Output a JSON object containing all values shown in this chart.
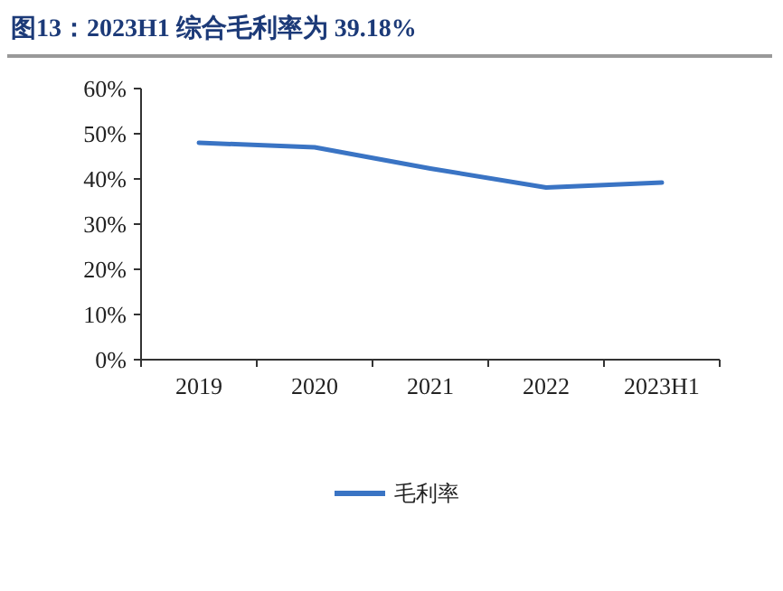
{
  "chart_data": {
    "type": "line",
    "title": "图13：2023H1 综合毛利率为 39.18%",
    "categories": [
      "2019",
      "2020",
      "2021",
      "2022",
      "2023H1"
    ],
    "series": [
      {
        "name": "毛利率",
        "color": "#3a74c4",
        "values": [
          48,
          47,
          42.3,
          38.1,
          39.18
        ]
      }
    ],
    "ylim": [
      0,
      60
    ],
    "yticks": [
      {
        "value": 0,
        "label": "0%"
      },
      {
        "value": 10,
        "label": "10%"
      },
      {
        "value": 20,
        "label": "20%"
      },
      {
        "value": 30,
        "label": "30%"
      },
      {
        "value": 40,
        "label": "40%"
      },
      {
        "value": 50,
        "label": "50%"
      },
      {
        "value": 60,
        "label": "60%"
      }
    ],
    "legend": "bottom",
    "marker": "none",
    "line_style": "solid",
    "grid": false
  }
}
